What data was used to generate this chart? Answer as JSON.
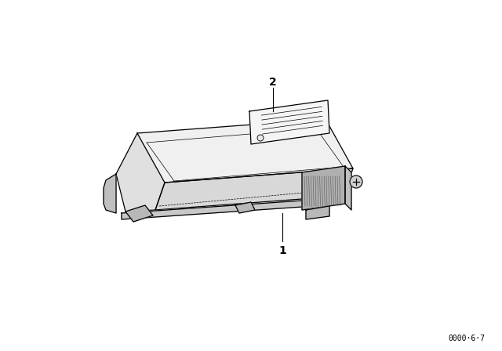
{
  "background_color": "#ffffff",
  "line_color": "#000000",
  "ref_number": "0000·6·7",
  "item1_label": "1",
  "item2_label": "2",
  "fig_width": 6.4,
  "fig_height": 4.48,
  "dpi": 100
}
